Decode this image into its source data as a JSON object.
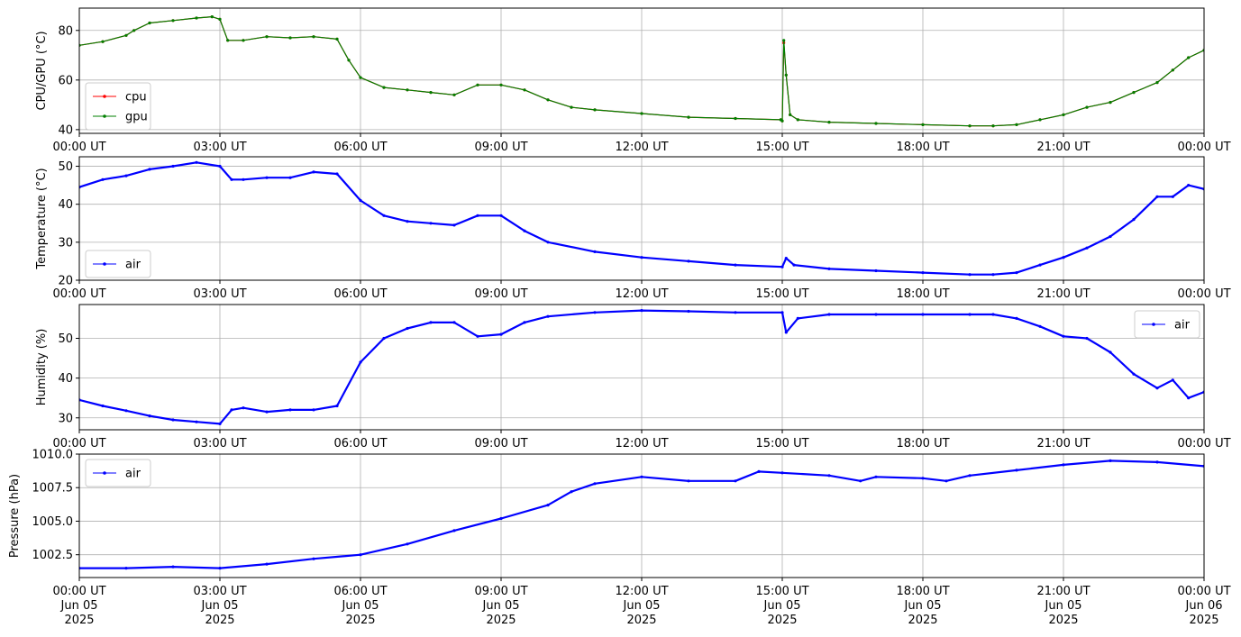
{
  "chart_data": [
    {
      "type": "line",
      "ylabel": "CPU/GPU (°C)",
      "xlim": [
        "2025-06-05T00:00",
        "2025-06-06T00:00"
      ],
      "ylim": [
        38.5,
        89
      ],
      "yticks": [
        "40",
        "60",
        "80"
      ],
      "ytick_values": [
        40,
        60,
        80
      ],
      "xtick_labels": [
        "00:00 UT",
        "03:00 UT",
        "06:00 UT",
        "09:00 UT",
        "12:00 UT",
        "15:00 UT",
        "18:00 UT",
        "21:00 UT",
        "00:00 UT"
      ],
      "grid": true,
      "legend_position": "lower-left",
      "x": [
        "2025-06-05T00:00",
        "2025-06-05T00:30",
        "2025-06-05T01:00",
        "2025-06-05T01:10",
        "2025-06-05T01:30",
        "2025-06-05T02:00",
        "2025-06-05T02:30",
        "2025-06-05T02:50",
        "2025-06-05T03:00",
        "2025-06-05T03:10",
        "2025-06-05T03:30",
        "2025-06-05T04:00",
        "2025-06-05T04:30",
        "2025-06-05T05:00",
        "2025-06-05T05:30",
        "2025-06-05T05:45",
        "2025-06-05T06:00",
        "2025-06-05T06:30",
        "2025-06-05T07:00",
        "2025-06-05T07:30",
        "2025-06-05T08:00",
        "2025-06-05T08:30",
        "2025-06-05T09:00",
        "2025-06-05T09:30",
        "2025-06-05T10:00",
        "2025-06-05T10:30",
        "2025-06-05T11:00",
        "2025-06-05T12:00",
        "2025-06-05T13:00",
        "2025-06-05T14:00",
        "2025-06-05T14:58",
        "2025-06-05T15:00",
        "2025-06-05T15:02",
        "2025-06-05T15:05",
        "2025-06-05T15:10",
        "2025-06-05T15:20",
        "2025-06-05T16:00",
        "2025-06-05T17:00",
        "2025-06-05T18:00",
        "2025-06-05T19:00",
        "2025-06-05T19:30",
        "2025-06-05T20:00",
        "2025-06-05T20:30",
        "2025-06-05T21:00",
        "2025-06-05T21:30",
        "2025-06-05T22:00",
        "2025-06-05T22:30",
        "2025-06-05T23:00",
        "2025-06-05T23:20",
        "2025-06-05T23:40",
        "2025-06-06T00:00"
      ],
      "series": [
        {
          "name": "cpu",
          "color": "#ff0000",
          "values": [
            74,
            75.5,
            78,
            80,
            83,
            84,
            85,
            85.5,
            84.5,
            76,
            76,
            77.5,
            77,
            77.5,
            76.5,
            68,
            61,
            57,
            56,
            55,
            54,
            58,
            58,
            56,
            52,
            49,
            48,
            46.5,
            45,
            44.5,
            44,
            43.5,
            75,
            62,
            46,
            44,
            43,
            42.5,
            42,
            41.5,
            41.5,
            42,
            44,
            46,
            49,
            51,
            55,
            59,
            64,
            69,
            72
          ]
        },
        {
          "name": "gpu",
          "color": "#008000",
          "values": [
            74,
            75.5,
            78,
            80,
            83,
            84,
            85,
            85.5,
            84.5,
            76,
            76,
            77.5,
            77,
            77.5,
            76.5,
            68,
            61,
            57,
            56,
            55,
            54,
            58,
            58,
            56,
            52,
            49,
            48,
            46.5,
            45,
            44.5,
            44,
            43.5,
            76,
            62,
            46,
            44,
            43,
            42.5,
            42,
            41.5,
            41.5,
            42,
            44,
            46,
            49,
            51,
            55,
            59,
            64,
            69,
            72
          ]
        }
      ]
    },
    {
      "type": "line",
      "ylabel": "Temperature (°C)",
      "xlim": [
        "2025-06-05T00:00",
        "2025-06-06T00:00"
      ],
      "ylim": [
        20,
        52.5
      ],
      "yticks": [
        "20",
        "30",
        "40",
        "50"
      ],
      "ytick_values": [
        20,
        30,
        40,
        50
      ],
      "xtick_labels": [
        "00:00 UT",
        "03:00 UT",
        "06:00 UT",
        "09:00 UT",
        "12:00 UT",
        "15:00 UT",
        "18:00 UT",
        "21:00 UT",
        "00:00 UT"
      ],
      "grid": true,
      "legend_position": "lower-left",
      "x": [
        "2025-06-05T00:00",
        "2025-06-05T00:30",
        "2025-06-05T01:00",
        "2025-06-05T01:30",
        "2025-06-05T02:00",
        "2025-06-05T02:30",
        "2025-06-05T03:00",
        "2025-06-05T03:15",
        "2025-06-05T03:30",
        "2025-06-05T04:00",
        "2025-06-05T04:30",
        "2025-06-05T05:00",
        "2025-06-05T05:30",
        "2025-06-05T06:00",
        "2025-06-05T06:30",
        "2025-06-05T07:00",
        "2025-06-05T07:30",
        "2025-06-05T08:00",
        "2025-06-05T08:30",
        "2025-06-05T09:00",
        "2025-06-05T09:30",
        "2025-06-05T10:00",
        "2025-06-05T11:00",
        "2025-06-05T12:00",
        "2025-06-05T13:00",
        "2025-06-05T14:00",
        "2025-06-05T15:00",
        "2025-06-05T15:05",
        "2025-06-05T15:15",
        "2025-06-05T16:00",
        "2025-06-05T17:00",
        "2025-06-05T18:00",
        "2025-06-05T19:00",
        "2025-06-05T19:30",
        "2025-06-05T20:00",
        "2025-06-05T20:30",
        "2025-06-05T21:00",
        "2025-06-05T21:30",
        "2025-06-05T22:00",
        "2025-06-05T22:30",
        "2025-06-05T23:00",
        "2025-06-05T23:20",
        "2025-06-05T23:40",
        "2025-06-06T00:00"
      ],
      "series": [
        {
          "name": "air",
          "color": "#0000ff",
          "values": [
            44.5,
            46.5,
            47.5,
            49.2,
            50,
            51,
            50,
            46.5,
            46.5,
            47,
            47,
            48.5,
            48,
            41,
            37,
            35.5,
            35,
            34.5,
            37,
            37,
            33,
            30,
            27.5,
            26,
            25,
            24,
            23.5,
            25.8,
            24,
            23,
            22.5,
            22,
            21.5,
            21.5,
            22,
            24,
            26,
            28.5,
            31.5,
            36,
            42,
            42,
            45,
            44
          ]
        }
      ]
    },
    {
      "type": "line",
      "ylabel": "Humidity (%)",
      "xlim": [
        "2025-06-05T00:00",
        "2025-06-06T00:00"
      ],
      "ylim": [
        27,
        58.5
      ],
      "yticks": [
        "30",
        "40",
        "50"
      ],
      "ytick_values": [
        30,
        40,
        50
      ],
      "xtick_labels": [
        "00:00 UT",
        "03:00 UT",
        "06:00 UT",
        "09:00 UT",
        "12:00 UT",
        "15:00 UT",
        "18:00 UT",
        "21:00 UT",
        "00:00 UT"
      ],
      "grid": true,
      "legend_position": "upper-right",
      "x": [
        "2025-06-05T00:00",
        "2025-06-05T00:30",
        "2025-06-05T01:00",
        "2025-06-05T01:30",
        "2025-06-05T02:00",
        "2025-06-05T02:30",
        "2025-06-05T03:00",
        "2025-06-05T03:15",
        "2025-06-05T03:30",
        "2025-06-05T04:00",
        "2025-06-05T04:30",
        "2025-06-05T05:00",
        "2025-06-05T05:30",
        "2025-06-05T06:00",
        "2025-06-05T06:30",
        "2025-06-05T07:00",
        "2025-06-05T07:30",
        "2025-06-05T08:00",
        "2025-06-05T08:30",
        "2025-06-05T09:00",
        "2025-06-05T09:30",
        "2025-06-05T10:00",
        "2025-06-05T11:00",
        "2025-06-05T12:00",
        "2025-06-05T13:00",
        "2025-06-05T14:00",
        "2025-06-05T15:00",
        "2025-06-05T15:05",
        "2025-06-05T15:20",
        "2025-06-05T16:00",
        "2025-06-05T17:00",
        "2025-06-05T18:00",
        "2025-06-05T19:00",
        "2025-06-05T19:30",
        "2025-06-05T20:00",
        "2025-06-05T20:30",
        "2025-06-05T21:00",
        "2025-06-05T21:30",
        "2025-06-05T22:00",
        "2025-06-05T22:30",
        "2025-06-05T23:00",
        "2025-06-05T23:20",
        "2025-06-05T23:40",
        "2025-06-06T00:00"
      ],
      "series": [
        {
          "name": "air",
          "color": "#0000ff",
          "values": [
            34.5,
            33,
            31.8,
            30.5,
            29.5,
            29,
            28.5,
            32,
            32.5,
            31.5,
            32,
            32,
            33,
            44,
            50,
            52.5,
            54,
            54,
            50.5,
            51,
            54,
            55.5,
            56.5,
            57,
            56.8,
            56.5,
            56.5,
            51.5,
            55,
            56,
            56,
            56,
            56,
            56,
            55,
            53,
            50.5,
            50,
            46.5,
            41,
            37.5,
            39.5,
            35,
            36.5
          ]
        }
      ]
    },
    {
      "type": "line",
      "ylabel": "Pressure (hPa)",
      "xlim": [
        "2025-06-05T00:00",
        "2025-06-06T00:00"
      ],
      "ylim": [
        1000.8,
        1010.0
      ],
      "yticks": [
        "1002.5",
        "1005.0",
        "1007.5",
        "1010.0"
      ],
      "ytick_values": [
        1002.5,
        1005.0,
        1007.5,
        1010.0
      ],
      "xtick_labels": [
        "00:00 UT\nJun 05\n2025",
        "03:00 UT\nJun 05\n2025",
        "06:00 UT\nJun 05\n2025",
        "09:00 UT\nJun 05\n2025",
        "12:00 UT\nJun 05\n2025",
        "15:00 UT\nJun 05\n2025",
        "18:00 UT\nJun 05\n2025",
        "21:00 UT\nJun 05\n2025",
        "00:00 UT\nJun 06\n2025"
      ],
      "grid": true,
      "legend_position": "upper-left",
      "x": [
        "2025-06-05T00:00",
        "2025-06-05T01:00",
        "2025-06-05T02:00",
        "2025-06-05T03:00",
        "2025-06-05T04:00",
        "2025-06-05T05:00",
        "2025-06-05T06:00",
        "2025-06-05T07:00",
        "2025-06-05T08:00",
        "2025-06-05T09:00",
        "2025-06-05T10:00",
        "2025-06-05T10:30",
        "2025-06-05T11:00",
        "2025-06-05T12:00",
        "2025-06-05T13:00",
        "2025-06-05T14:00",
        "2025-06-05T14:30",
        "2025-06-05T15:00",
        "2025-06-05T16:00",
        "2025-06-05T16:40",
        "2025-06-05T17:00",
        "2025-06-05T18:00",
        "2025-06-05T18:30",
        "2025-06-05T19:00",
        "2025-06-05T20:00",
        "2025-06-05T21:00",
        "2025-06-05T22:00",
        "2025-06-05T23:00",
        "2025-06-06T00:00"
      ],
      "series": [
        {
          "name": "air",
          "color": "#0000ff",
          "values": [
            1001.5,
            1001.5,
            1001.6,
            1001.5,
            1001.8,
            1002.2,
            1002.5,
            1003.3,
            1004.3,
            1005.2,
            1006.2,
            1007.2,
            1007.8,
            1008.3,
            1008.0,
            1008.0,
            1008.7,
            1008.6,
            1008.4,
            1008.0,
            1008.3,
            1008.2,
            1008.0,
            1008.4,
            1008.8,
            1009.2,
            1009.5,
            1009.4,
            1009.1
          ]
        }
      ]
    }
  ]
}
